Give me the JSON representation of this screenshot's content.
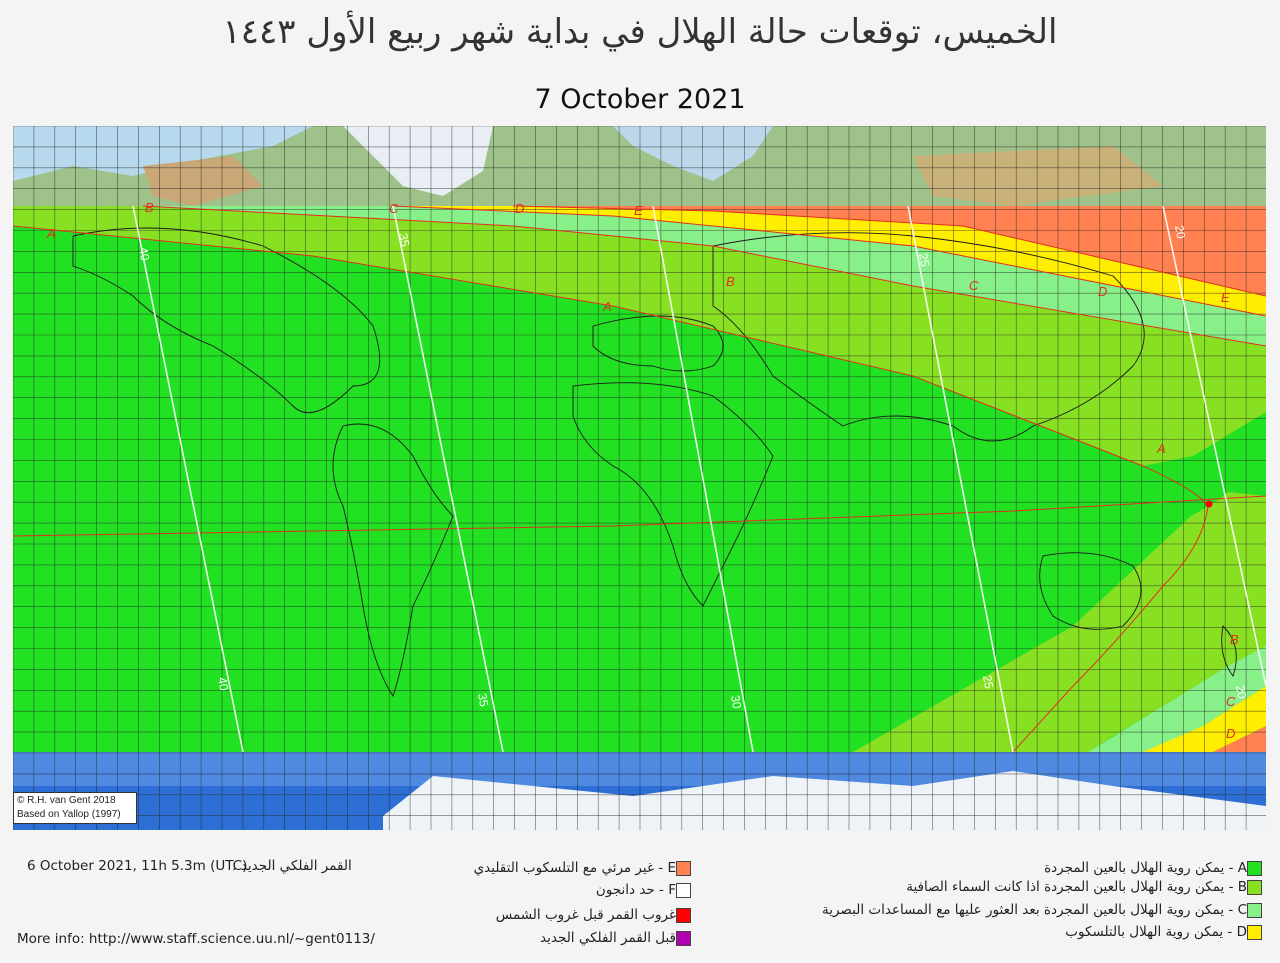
{
  "title_arabic": "الخميس، توقعات حالة الهلال في بداية شهر ربيع الأول ١٤٤٣",
  "date": "7 October 2021",
  "credit": {
    "line1": "© R.H. van Gent 2018",
    "line2": "Based on Yallop (1997)"
  },
  "new_moon": {
    "value": "6 October 2021, 11h 5.3m (UTC)",
    "label": "القمر الفلكي الجديد :"
  },
  "more_info": "More info: http://www.staff.science.uu.nl/~gent0113/",
  "legend_left": [
    {
      "text": "E - غير مرئي مع التلسكوب التقليدي",
      "color": "#ff8050"
    },
    {
      "text": "F - حد دانجون",
      "color": "#ffffff"
    },
    {
      "text": "غروب القمر قبل غروب الشمس",
      "color": "#ff0000"
    },
    {
      "text": "قبل القمر  الفلكي الجديد",
      "color": "#b000b0"
    }
  ],
  "legend_right": [
    {
      "text": "A - يمكن روية الهلال بالعين المجردة",
      "color": "#22e022"
    },
    {
      "text": "B - يمكن روية الهلال بالعين المجردة اذا كانت السماء الصافية",
      "color": "#88e022"
    },
    {
      "text": "C - يمكن روية الهلال بالعين المجردة بعد العثور عليها مع المساعدات البصرية",
      "color": "#88f088"
    },
    {
      "text": "D - يمكن روية الهلال بالتلسكوب",
      "color": "#ffee00"
    }
  ],
  "zone_labels": [
    {
      "id": "zone-a-west",
      "text": "A"
    },
    {
      "id": "zone-b-west",
      "text": "B"
    },
    {
      "id": "zone-c-west",
      "text": "C"
    },
    {
      "id": "zone-d-west",
      "text": "D"
    },
    {
      "id": "zone-e-west",
      "text": "E"
    },
    {
      "id": "zone-a-center",
      "text": "A"
    },
    {
      "id": "zone-b-center",
      "text": "B"
    },
    {
      "id": "zone-c-east",
      "text": "C"
    },
    {
      "id": "zone-d-east",
      "text": "D"
    },
    {
      "id": "zone-e-east",
      "text": "E"
    },
    {
      "id": "zone-a-east",
      "text": "A"
    },
    {
      "id": "zone-b-south",
      "text": "B"
    },
    {
      "id": "zone-c-south",
      "text": "C"
    },
    {
      "id": "zone-d-south",
      "text": "D"
    }
  ],
  "contour_labels": [
    "40",
    "35",
    "30",
    "25",
    "20",
    "25",
    "35",
    "40",
    "20"
  ]
}
